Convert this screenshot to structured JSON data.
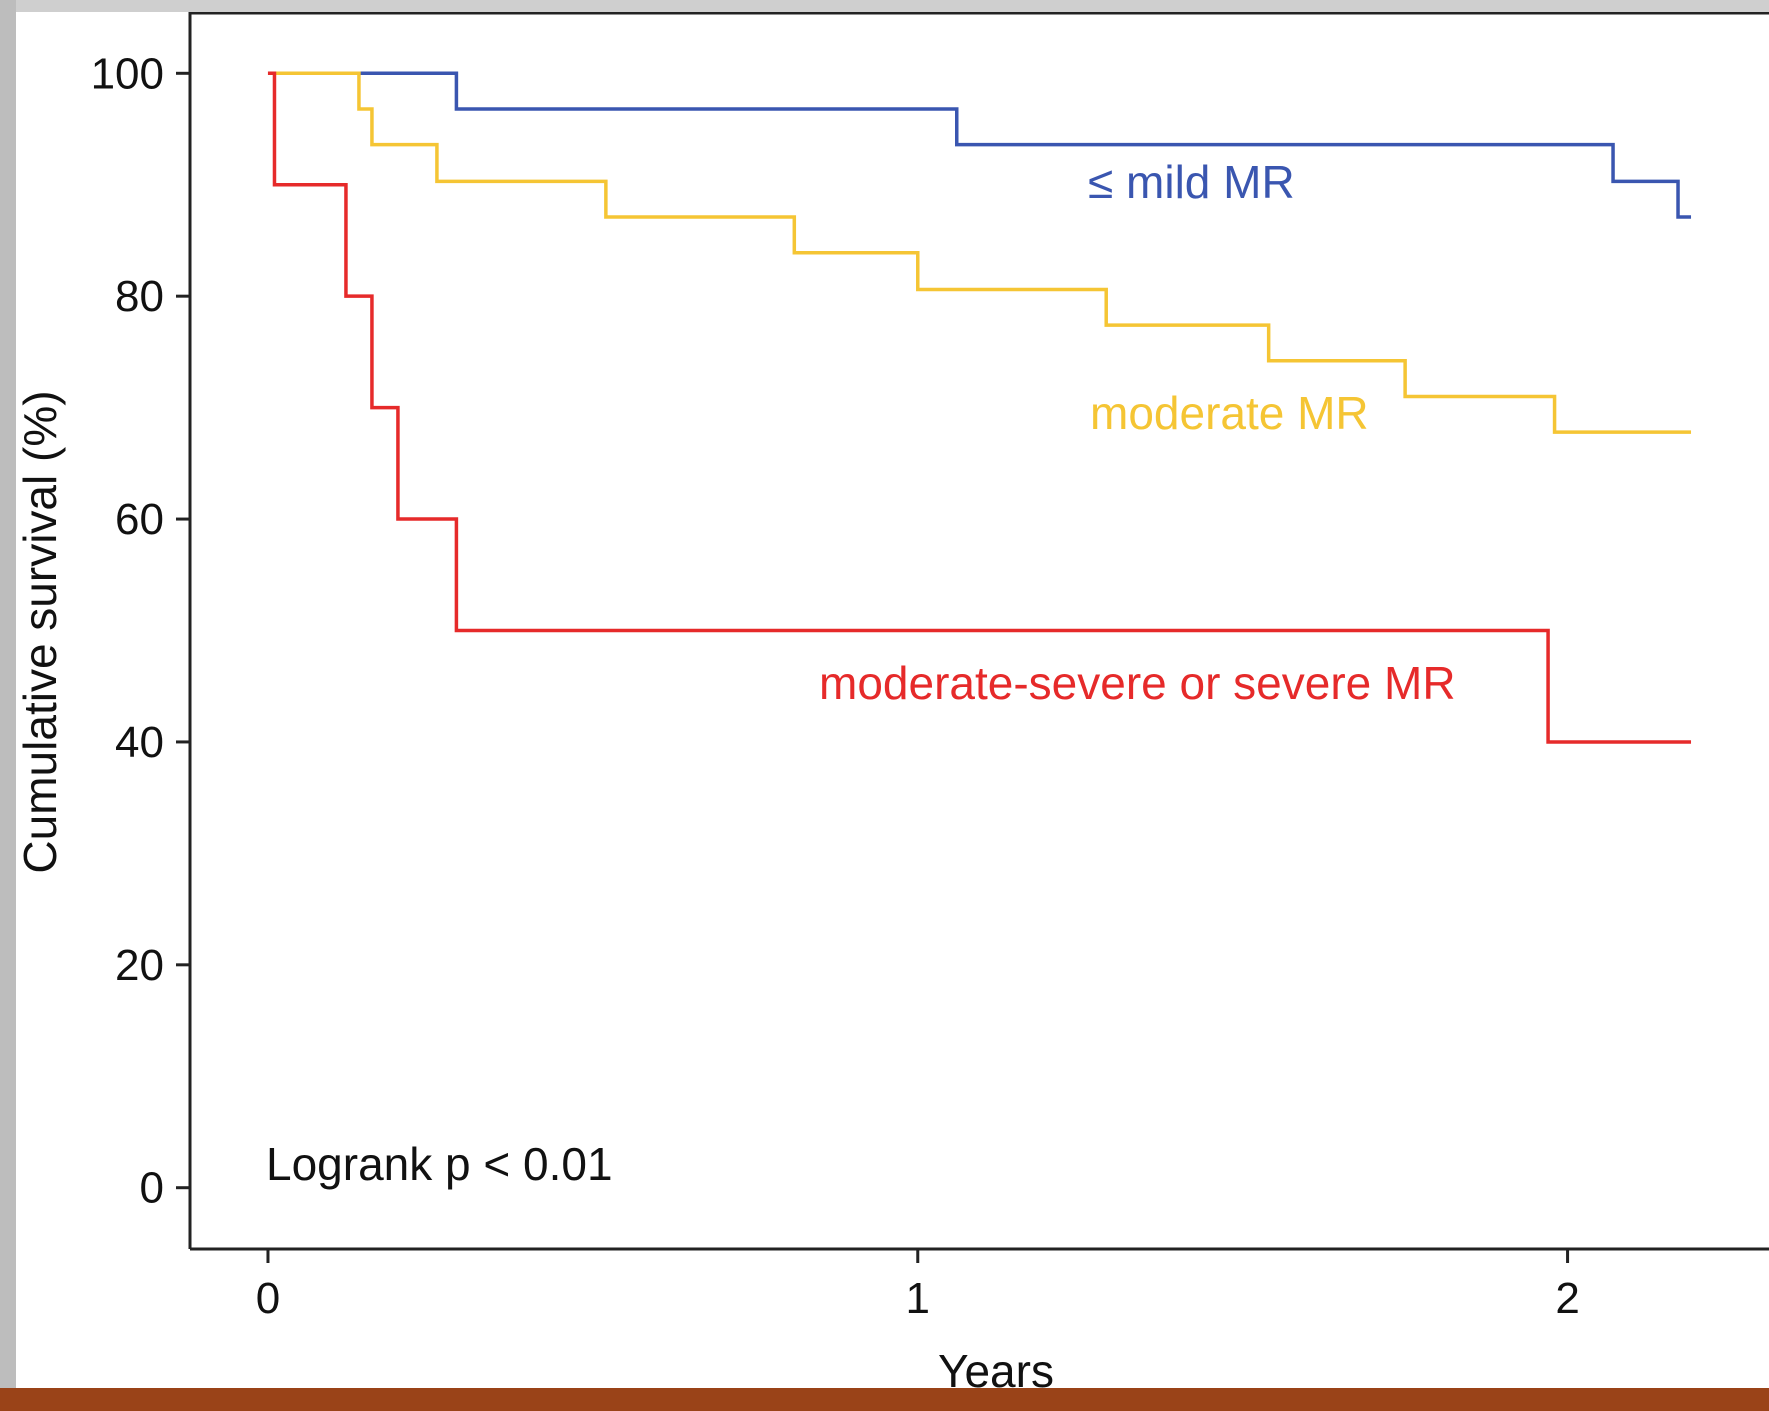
{
  "chart_data": {
    "type": "line",
    "step": true,
    "xlabel": "Years",
    "ylabel": "Cumulative survival (%)",
    "xlim": [
      -0.12,
      2.31
    ],
    "ylim": [
      -5.5,
      105.5
    ],
    "xticks": [
      0,
      1,
      2
    ],
    "yticks": [
      0,
      20,
      40,
      60,
      80,
      100
    ],
    "grid": false,
    "annotation": "Logrank p < 0.01",
    "series": [
      {
        "name": "≤ mild MR",
        "color": "#3a56b0",
        "x": [
          0,
          0.29,
          1.06,
          2.07,
          2.17,
          2.19
        ],
        "y": [
          100,
          96.8,
          93.6,
          90.3,
          87.1,
          87.1
        ]
      },
      {
        "name": "moderate MR",
        "color": "#f5c534",
        "x": [
          0,
          0.14,
          0.16,
          0.26,
          0.52,
          0.81,
          1.0,
          1.29,
          1.54,
          1.75,
          1.98,
          2.19
        ],
        "y": [
          100,
          96.8,
          93.6,
          90.3,
          87.1,
          83.9,
          80.6,
          77.4,
          74.2,
          71.0,
          67.8,
          67.8
        ]
      },
      {
        "name": "moderate-severe or severe MR",
        "color": "#e62a2a",
        "x": [
          0,
          0.01,
          0.12,
          0.16,
          0.2,
          0.29,
          1.97,
          2.19
        ],
        "y": [
          100,
          90,
          80,
          70,
          60,
          50,
          40,
          40
        ]
      }
    ]
  }
}
